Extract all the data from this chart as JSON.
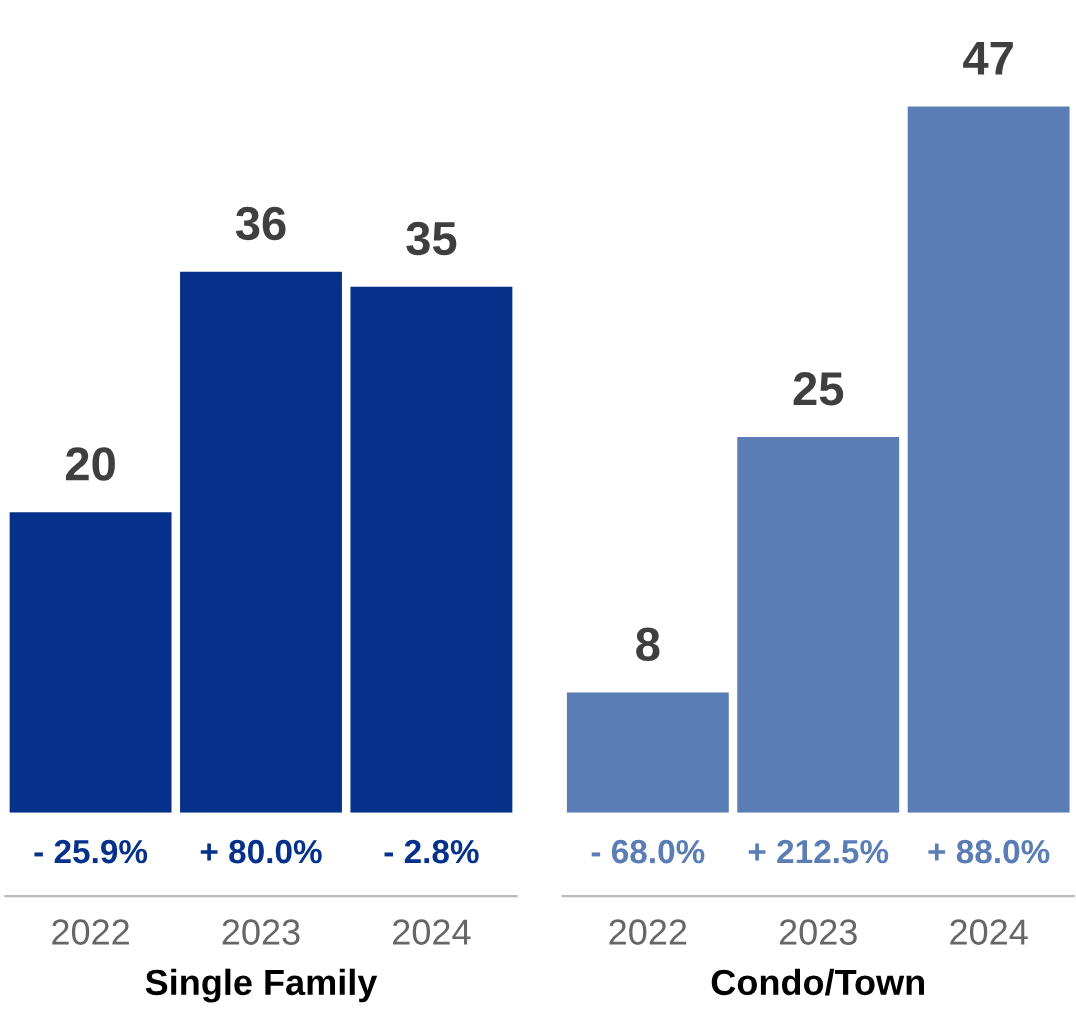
{
  "chart_data": [
    {
      "type": "bar",
      "xlabel": "Single Family",
      "categories": [
        "2022",
        "2023",
        "2024"
      ],
      "values": [
        20,
        36,
        35
      ],
      "color": "#05318a",
      "data_labels": true,
      "grid": false,
      "legend": false,
      "annotations": [
        "- 25.9%",
        "+ 80.0%",
        "- 2.8%"
      ]
    },
    {
      "type": "bar",
      "xlabel": "Condo/Town",
      "categories": [
        "2022",
        "2023",
        "2024"
      ],
      "values": [
        8,
        25,
        47
      ],
      "color": "#5b7db5",
      "data_labels": true,
      "grid": false,
      "legend": false,
      "annotations": [
        "- 68.0%",
        "+ 212.5%",
        "+ 88.0%"
      ]
    }
  ]
}
